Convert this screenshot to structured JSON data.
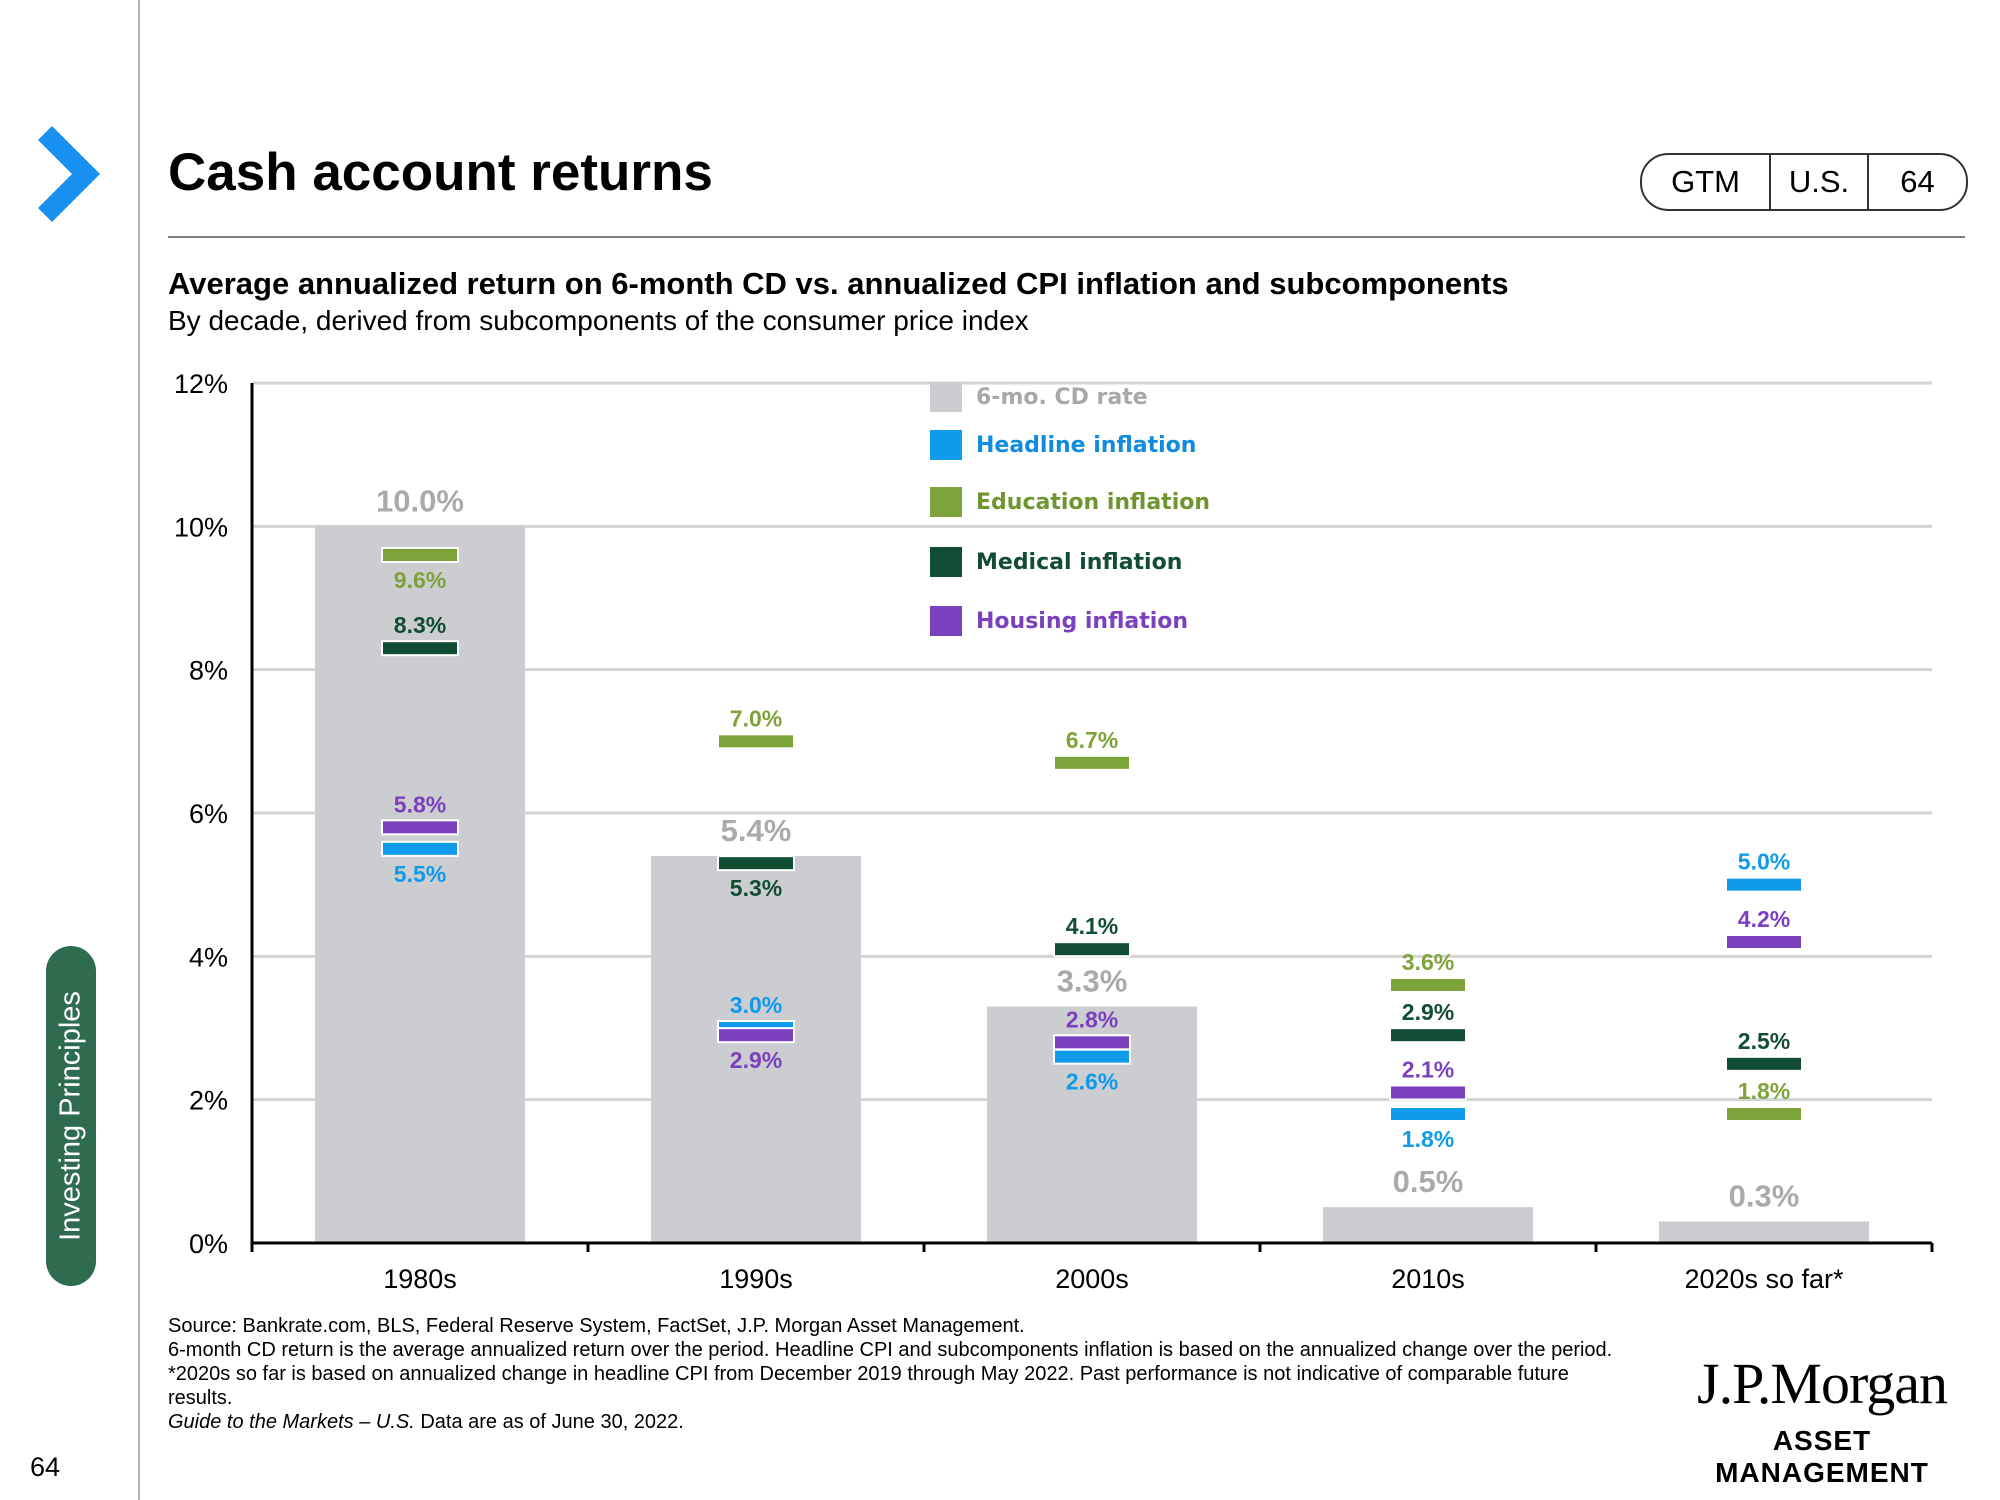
{
  "header": {
    "title": "Cash account returns",
    "tags": [
      "GTM",
      "U.S.",
      "64"
    ]
  },
  "sidebar": {
    "section_label": "Investing Principles",
    "page_number": "64"
  },
  "colors": {
    "cd": "#cbcdd0",
    "headline": "#0f9aea",
    "education": "#7ea33a",
    "medical": "#114d32",
    "housing": "#7a40be",
    "chevron": "#1890f0",
    "section": "#2e6b4f"
  },
  "chart_data": {
    "type": "bar",
    "title": "Average annualized return on 6-month CD vs. annualized CPI inflation and subcomponents",
    "subtitle": "By decade, derived from subcomponents of the consumer price index",
    "categories": [
      "1980s",
      "1990s",
      "2000s",
      "2010s",
      "2020s so far*"
    ],
    "ylim": [
      0,
      12
    ],
    "yticks": [
      "0%",
      "2%",
      "4%",
      "6%",
      "8%",
      "10%",
      "12%"
    ],
    "grid": true,
    "legend_position": "top-center",
    "bars": {
      "name": "6-mo. CD rate",
      "values": [
        10.0,
        5.4,
        3.3,
        0.5,
        0.3
      ],
      "labels": [
        "10.0%",
        "5.4%",
        "3.3%",
        "0.5%",
        "0.3%"
      ]
    },
    "markers": [
      {
        "name": "Headline inflation",
        "key": "headline",
        "values": [
          5.5,
          3.0,
          2.6,
          1.8,
          5.0
        ],
        "labels": [
          "5.5%",
          "3.0%",
          "2.6%",
          "1.8%",
          "5.0%"
        ],
        "label_side": [
          "below",
          "above",
          "below",
          "below",
          "above"
        ]
      },
      {
        "name": "Education inflation",
        "key": "education",
        "values": [
          9.6,
          7.0,
          6.7,
          3.6,
          1.8
        ],
        "labels": [
          "9.6%",
          "7.0%",
          "6.7%",
          "3.6%",
          "1.8%"
        ],
        "label_side": [
          "below",
          "above",
          "above",
          "above",
          "above"
        ]
      },
      {
        "name": "Medical inflation",
        "key": "medical",
        "values": [
          8.3,
          5.3,
          4.1,
          2.9,
          2.5
        ],
        "labels": [
          "8.3%",
          "5.3%",
          "4.1%",
          "2.9%",
          "2.5%"
        ],
        "label_side": [
          "above",
          "below",
          "above",
          "above",
          "above"
        ]
      },
      {
        "name": "Housing inflation",
        "key": "housing",
        "values": [
          5.8,
          2.9,
          2.8,
          2.1,
          4.2
        ],
        "labels": [
          "5.8%",
          "2.9%",
          "2.8%",
          "2.1%",
          "4.2%"
        ],
        "label_side": [
          "above",
          "below",
          "above",
          "above",
          "above"
        ]
      }
    ]
  },
  "footnotes": {
    "source": "Source: Bankrate.com, BLS, Federal Reserve System, FactSet, J.P. Morgan Asset Management.",
    "note": "6-month CD return is the average annualized return over the period. Headline CPI and subcomponents inflation is based on the annualized change over the period. *2020s so far is based on annualized change in headline CPI from December 2019 through May 2022. Past performance is not indicative of comparable future results.",
    "guide_italic": "Guide to the Markets – U.S.",
    "guide_date": " Data are as of June 30, 2022."
  },
  "logo": {
    "main": "J.P.Morgan",
    "sub": "ASSET MANAGEMENT"
  }
}
